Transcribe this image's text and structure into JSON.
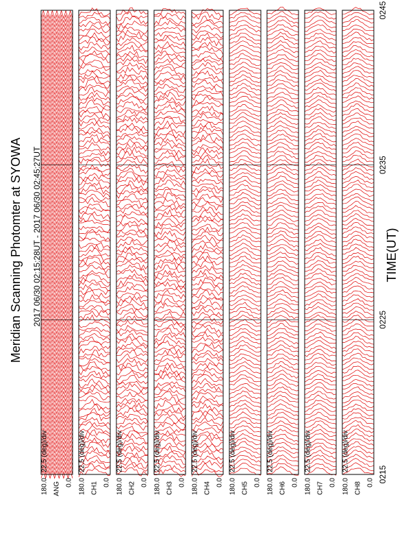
{
  "header": {
    "title": "Meridian Scanning Photomter at SYOWA",
    "subtitle": "2017 06/30 02:15:28UT - 2017 06/30 02:45:27UT"
  },
  "time_axis": {
    "label": "TIME(UT)",
    "ticks": [
      "0215",
      "0225",
      "0235",
      "0245"
    ]
  },
  "panels": [
    {
      "label": "ANG",
      "scale": "22.5 (deg)/div",
      "top": "180.0",
      "bottom": "0.0"
    },
    {
      "label": "CH1",
      "scale": "22.5 (deg)/div",
      "top": "180.0",
      "bottom": "0.0"
    },
    {
      "label": "CH2",
      "scale": "22.5 (deg)/div",
      "top": "180.0",
      "bottom": "0.0"
    },
    {
      "label": "CH3",
      "scale": "22.5 (deg)/div",
      "top": "180.0",
      "bottom": "0.0"
    },
    {
      "label": "CH4",
      "scale": "22.5 (deg)/div",
      "top": "180.0",
      "bottom": "0.0"
    },
    {
      "label": "CH5",
      "scale": "22.5 (deg)/div",
      "top": "180.0",
      "bottom": "0.0"
    },
    {
      "label": "CH6",
      "scale": "22.5 (deg)/div",
      "top": "180.0",
      "bottom": "0.0"
    },
    {
      "label": "CH7",
      "scale": "22.5 (deg)/div",
      "top": "180.0",
      "bottom": "0.0"
    },
    {
      "label": "CH8",
      "scale": "22.5 (deg)/div",
      "top": "180.0",
      "bottom": "0.0"
    }
  ]
}
